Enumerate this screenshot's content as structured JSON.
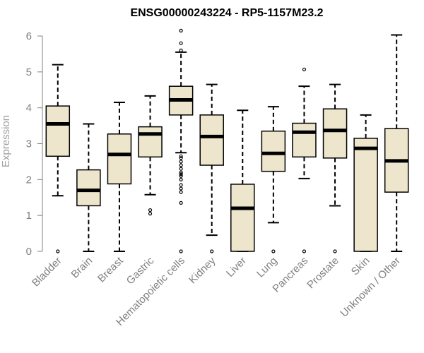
{
  "chart_data": {
    "type": "boxplot",
    "title": "ENSG00000243224 - RP5-1157M23.2",
    "ylabel": "Expression",
    "xlabel": "",
    "ylim": [
      0,
      6.1
    ],
    "yticks": [
      0,
      1,
      2,
      3,
      4,
      5,
      6
    ],
    "box_color": "#ede6cc",
    "categories": [
      "Bladder",
      "Brain",
      "Breast",
      "Gastric",
      "Hematopoietic cells",
      "Kidney",
      "Liver",
      "Lung",
      "Pancreas",
      "Prostate",
      "Skin",
      "Unknown / Other"
    ],
    "boxes": [
      {
        "category": "Bladder",
        "whisker_low": 1.55,
        "q1": 2.65,
        "median": 3.55,
        "q3": 4.05,
        "whisker_high": 5.2,
        "outliers": [
          0.0
        ]
      },
      {
        "category": "Brain",
        "whisker_low": 0.0,
        "q1": 1.27,
        "median": 1.7,
        "q3": 2.27,
        "whisker_high": 3.55,
        "outliers": []
      },
      {
        "category": "Breast",
        "whisker_low": 0.0,
        "q1": 1.88,
        "median": 2.7,
        "q3": 3.27,
        "whisker_high": 4.15,
        "outliers": []
      },
      {
        "category": "Gastric",
        "whisker_low": 1.58,
        "q1": 2.63,
        "median": 3.27,
        "q3": 3.47,
        "whisker_high": 4.33,
        "outliers": [
          1.15,
          1.05
        ]
      },
      {
        "category": "Hematopoietic cells",
        "whisker_low": 2.75,
        "q1": 3.8,
        "median": 4.22,
        "q3": 4.6,
        "whisker_high": 5.55,
        "outliers": [
          6.15,
          5.8,
          5.6,
          0.0,
          1.35,
          1.65,
          1.75,
          1.85,
          2.0,
          2.1,
          2.15,
          2.2,
          2.3,
          2.4,
          2.5,
          2.6,
          2.65
        ]
      },
      {
        "category": "Kidney",
        "whisker_low": 0.45,
        "q1": 2.4,
        "median": 3.2,
        "q3": 3.8,
        "whisker_high": 4.65,
        "outliers": [
          0.0
        ]
      },
      {
        "category": "Liver",
        "whisker_low": 0.0,
        "q1": 0.0,
        "median": 1.2,
        "q3": 1.87,
        "whisker_high": 3.93,
        "outliers": []
      },
      {
        "category": "Lung",
        "whisker_low": 0.8,
        "q1": 2.23,
        "median": 2.73,
        "q3": 3.35,
        "whisker_high": 4.03,
        "outliers": [
          0.0
        ]
      },
      {
        "category": "Pancreas",
        "whisker_low": 2.03,
        "q1": 2.63,
        "median": 3.32,
        "q3": 3.57,
        "whisker_high": 4.6,
        "outliers": [
          5.07,
          0.0
        ]
      },
      {
        "category": "Prostate",
        "whisker_low": 1.27,
        "q1": 2.6,
        "median": 3.37,
        "q3": 3.97,
        "whisker_high": 4.65,
        "outliers": [
          0.0
        ]
      },
      {
        "category": "Skin",
        "whisker_low": 0.0,
        "q1": 0.0,
        "median": 2.87,
        "q3": 3.15,
        "whisker_high": 3.8,
        "outliers": []
      },
      {
        "category": "Unknown / Other",
        "whisker_low": 0.0,
        "q1": 1.65,
        "median": 2.52,
        "q3": 3.42,
        "whisker_high": 6.03,
        "outliers": []
      }
    ]
  }
}
